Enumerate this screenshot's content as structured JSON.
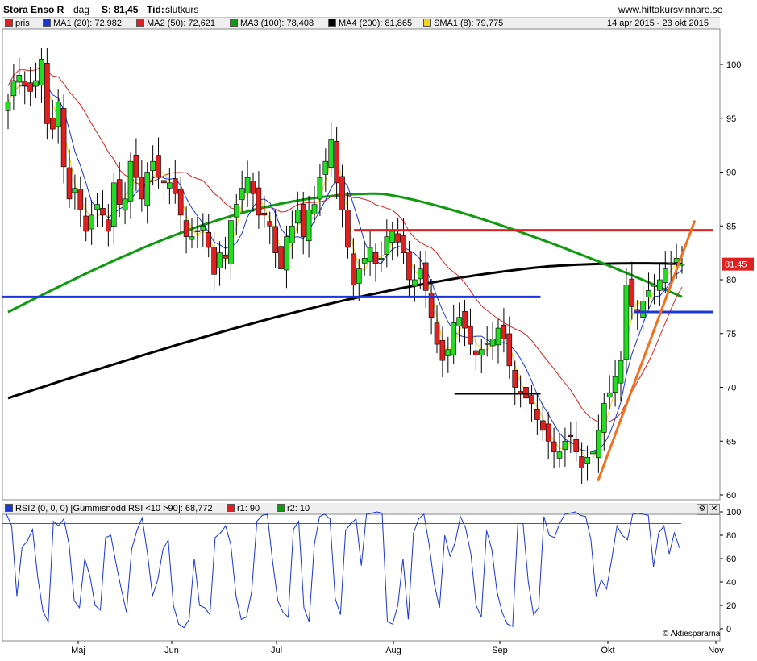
{
  "header": {
    "title": "Stora Enso R",
    "period": "dag",
    "last_label": "S: 81,45",
    "time_label": "Tid:",
    "time_value": "slutkurs",
    "site": "www.hittakursvinnare.se",
    "date_range": "14 apr 2015 - 23 okt 2015"
  },
  "legend": [
    {
      "label": "pris",
      "color": "#e02020"
    },
    {
      "label": "MA1 (20): 72,982",
      "color": "#1a35d8"
    },
    {
      "label": "MA2 (50): 72,621",
      "color": "#e02020"
    },
    {
      "label": "MA3 (100): 78,408",
      "color": "#109a10"
    },
    {
      "label": "MA4 (200): 81,865",
      "color": "#000000"
    },
    {
      "label": "SMA1 (8): 79,775",
      "color": "#f2d21a"
    }
  ],
  "price_tag": "81,45",
  "rsi_legend": [
    {
      "label": "RSI2 (0, 0, 0) [Gummisnodd RSI <10 >90]: 68,772",
      "color": "#1a35d8"
    },
    {
      "label": "r1: 90",
      "color": "#e02020"
    },
    {
      "label": "r2: 10",
      "color": "#109a10"
    }
  ],
  "credit": "Aktiespararna",
  "chart_data": [
    {
      "type": "candlestick",
      "title": "Stora Enso R",
      "x_labels": [
        "Maj",
        "Jun",
        "Jul",
        "Aug",
        "Sep",
        "Okt",
        "Nov"
      ],
      "y_ticks": [
        100,
        95,
        90,
        85,
        80,
        75,
        70,
        65,
        60
      ],
      "ylim": [
        60,
        103
      ],
      "grid": false,
      "close": [
        96.5,
        98.5,
        99.0,
        98.0,
        97.5,
        98.5,
        100.5,
        94.5,
        94.0,
        96.5,
        90.5,
        87.5,
        88.5,
        86.5,
        84.5,
        86.0,
        87.0,
        86.0,
        84.5,
        89.0,
        87.0,
        87.5,
        91.0,
        89.5,
        87.5,
        90.0,
        91.0,
        89.5,
        89.0,
        89.0,
        88.0,
        86.0,
        84.0,
        84.0,
        84.5,
        85.0,
        83.0,
        80.5,
        82.5,
        82.0,
        85.5,
        87.0,
        88.5,
        89.5,
        88.0,
        86.0,
        86.0,
        85.0,
        82.5,
        81.0,
        84.0,
        85.0,
        86.5,
        84.0,
        86.5,
        87.0,
        89.5,
        91.0,
        93.0,
        89.0,
        86.5,
        83.0,
        79.5,
        81.0,
        82.0,
        83.0,
        81.5,
        82.0,
        84.0,
        84.5,
        83.5,
        82.5,
        80.0,
        80.0,
        81.0,
        79.0,
        76.5,
        74.0,
        72.5,
        73.5,
        76.0,
        76.5,
        75.5,
        74.0,
        73.0,
        73.5,
        74.0,
        74.5,
        75.5,
        74.5,
        72.0,
        70.0,
        69.5,
        69.0,
        68.5,
        67.0,
        66.0,
        65.0,
        64.0,
        64.0,
        65.0,
        65.5,
        64.0,
        62.5,
        63.5,
        64.0,
        66.0,
        68.5,
        69.5,
        71.0,
        72.5,
        79.5,
        77.5,
        77.0,
        78.0,
        79.0,
        79.5,
        80.0,
        81.0,
        81.5,
        82.0,
        81.45
      ],
      "series": [
        {
          "name": "MA1 (20)",
          "last": 72.982
        },
        {
          "name": "MA2 (50)",
          "last": 72.621
        },
        {
          "name": "MA3 (100)",
          "last": 78.408
        },
        {
          "name": "MA4 (200)",
          "last": 81.865
        },
        {
          "name": "SMA1 (8)",
          "last": 79.775
        }
      ],
      "annotations": [
        {
          "kind": "hline",
          "y": 84.6,
          "x_from": 0.49,
          "x_to": 0.99,
          "color": "#e02020"
        },
        {
          "kind": "hline",
          "y": 78.4,
          "x_from": 0.0,
          "x_to": 0.75,
          "color": "#1a35d8"
        },
        {
          "kind": "hline",
          "y": 77.0,
          "x_from": 0.88,
          "x_to": 0.99,
          "color": "#1a35d8"
        },
        {
          "kind": "hline",
          "y": 69.4,
          "x_from": 0.63,
          "x_to": 0.75,
          "color": "#000000"
        },
        {
          "kind": "trend",
          "from": [
            0.83,
            61.3
          ],
          "to": [
            0.965,
            85.5
          ],
          "color": "#f07020"
        }
      ]
    },
    {
      "type": "line",
      "title": "RSI2 (0, 0, 0) [Gummisnodd RSI <10 >90]",
      "y_ticks": [
        100,
        80,
        60,
        40,
        20,
        0
      ],
      "ylim": [
        0,
        103
      ],
      "levels": {
        "r1": 90,
        "r2": 10
      },
      "series": [
        {
          "name": "RSI2",
          "values": [
            98,
            88,
            28,
            70,
            75,
            85,
            44,
            15,
            6,
            92,
            88,
            94,
            72,
            24,
            18,
            60,
            45,
            20,
            16,
            78,
            80,
            56,
            34,
            14,
            68,
            84,
            95,
            65,
            28,
            42,
            68,
            76,
            20,
            4,
            1,
            8,
            60,
            20,
            18,
            12,
            78,
            82,
            88,
            72,
            28,
            8,
            10,
            32,
            92,
            97,
            98,
            58,
            24,
            14,
            10,
            85,
            92,
            18,
            6,
            72,
            96,
            98,
            94,
            26,
            12,
            84,
            90,
            94,
            54,
            98,
            99,
            100,
            99,
            6,
            4,
            20,
            60,
            8,
            82,
            94,
            98,
            72,
            38,
            18,
            80,
            62,
            74,
            96,
            86,
            64,
            20,
            10,
            84,
            68,
            32,
            14,
            4,
            2,
            90,
            90,
            40,
            12,
            18,
            96,
            80,
            78,
            90,
            98,
            99,
            100,
            97,
            96,
            76,
            28,
            42,
            34,
            60,
            88,
            80,
            76,
            98,
            99,
            98,
            97,
            53,
            82,
            88,
            64,
            82,
            69
          ]
        }
      ]
    }
  ]
}
